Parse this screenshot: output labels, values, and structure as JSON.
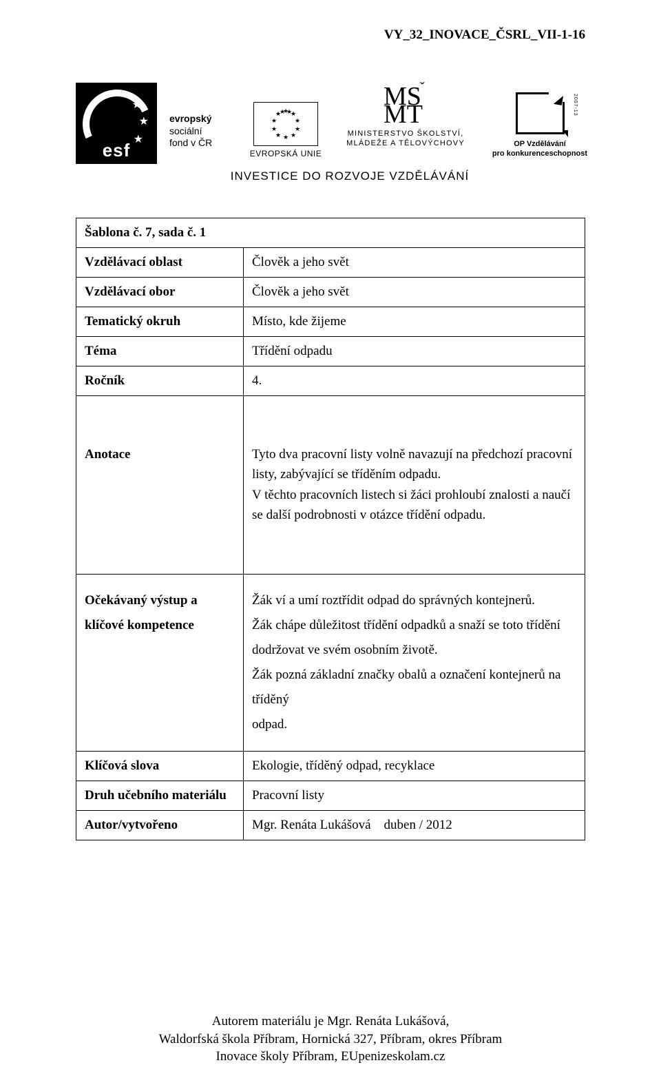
{
  "header_code": "VY_32_INOVACE_ČSRL_VII-1-16",
  "logos": {
    "esf_abbr": "esf",
    "esf_text_bold": "evropský",
    "esf_text_l2": "sociální",
    "esf_text_l3": "fond v ČR",
    "eu_label": "EVROPSKÁ UNIE",
    "msmt_l1": "MINISTERSTVO ŠKOLSTVÍ,",
    "msmt_l2": "MLÁDEŽE A TĚLOVÝCHOVY",
    "op_l1": "OP Vzdělávání",
    "op_l2": "pro konkurenceschopnost",
    "op_side": "2007-13",
    "invest": "INVESTICE DO ROZVOJE VZDĚLÁVÁNÍ"
  },
  "table": {
    "row1": {
      "label": "Šablona č. 7, sada č. 1",
      "value": ""
    },
    "row2": {
      "label": "Vzdělávací oblast",
      "value": "Člověk a jeho svět"
    },
    "row3": {
      "label": "Vzdělávací obor",
      "value": "Člověk a jeho svět"
    },
    "row4": {
      "label": "Tematický okruh",
      "value": "Místo, kde žijeme"
    },
    "row5": {
      "label": "Téma",
      "value": "Třídění odpadu"
    },
    "row6": {
      "label": "Ročník",
      "value": "4."
    },
    "row7": {
      "label": "Anotace",
      "value": "Tyto dva pracovní listy volně navazují na předchozí pracovní listy, zabývající se tříděním odpadu.\nV těchto pracovních listech si žáci prohloubí znalosti a naučí se další podrobnosti v otázce třídění odpadu."
    },
    "row8": {
      "label": "Očekávaný výstup a klíčové kompetence",
      "lines": [
        "Žák ví a umí roztřídit odpad do správných kontejnerů.",
        "Žák chápe důležitost třídění odpadků a snaží se toto třídění",
        "dodržovat ve svém osobním životě.",
        "Žák pozná základní značky obalů a označení kontejnerů na tříděný",
        "odpad."
      ]
    },
    "row9": {
      "label": "Klíčová slova",
      "value": "Ekologie, tříděný odpad, recyklace"
    },
    "row10": {
      "label": "Druh učebního materiálu",
      "value": "Pracovní listy"
    },
    "row11": {
      "label": "Autor/vytvořeno",
      "value": "Mgr. Renáta Lukášová duben / 2012"
    }
  },
  "footer": {
    "l1": "Autorem materiálu je Mgr. Renáta Lukášová,",
    "l2": "Waldorfská škola Příbram, Hornická 327, Příbram, okres Příbram",
    "l3": "Inovace školy Příbram, EUpenizeskolam.cz"
  }
}
